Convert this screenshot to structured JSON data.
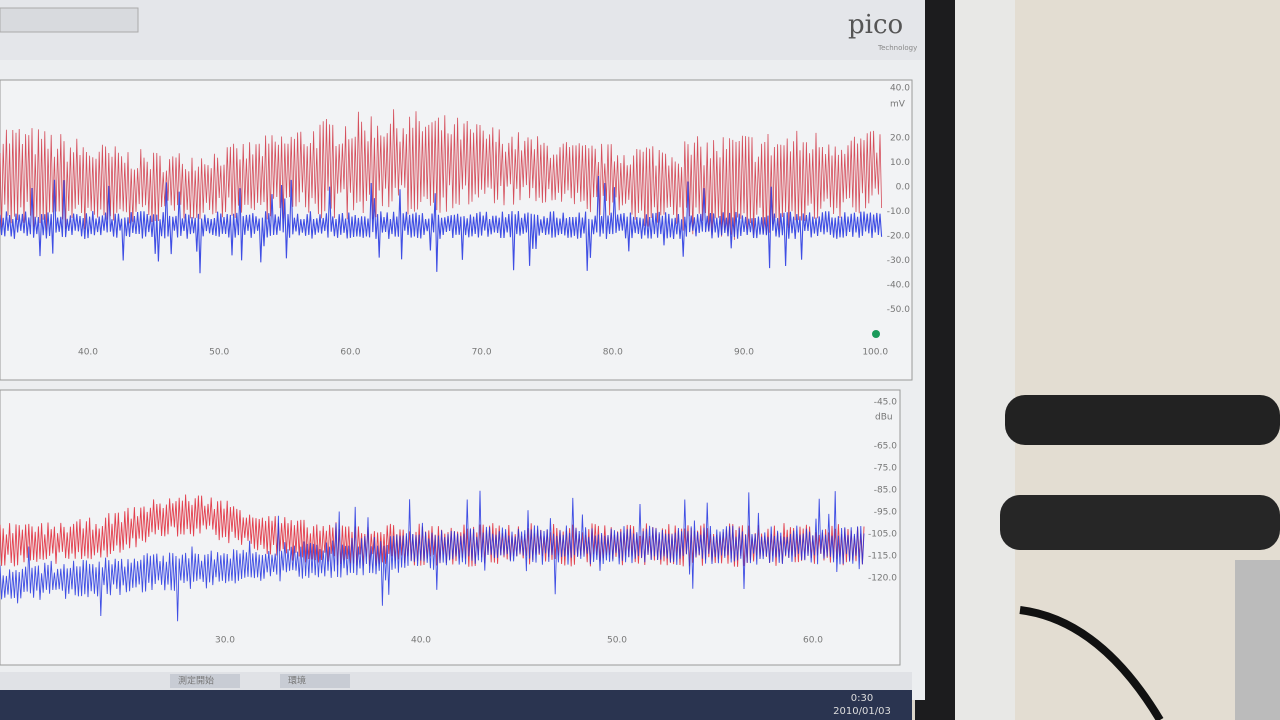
{
  "toolbar": {
    "logo": "pico",
    "logo_sub": "Technology"
  },
  "top_panel": {
    "y_unit": "mV",
    "y_ticks": [
      "40.0",
      "20.0",
      "10.0",
      "0.0",
      "-10.0",
      "-20.0",
      "-30.0",
      "-40.0",
      "-50.0"
    ],
    "x_ticks": [
      "40.0",
      "50.0",
      "60.0",
      "70.0",
      "80.0",
      "90.0",
      "100.0"
    ]
  },
  "bottom_panel": {
    "y_unit": "dBu",
    "y_ticks": [
      "-45.0",
      "-65.0",
      "-75.0",
      "-85.0",
      "-95.0",
      "-105.0",
      "-115.0",
      "-120.0"
    ],
    "x_ticks": [
      "30.0",
      "40.0",
      "50.0",
      "60.0"
    ]
  },
  "taskbar": {
    "buttons": [
      "測定開始",
      "環境"
    ],
    "clock": "0:30",
    "date": "2010/01/03"
  }
}
